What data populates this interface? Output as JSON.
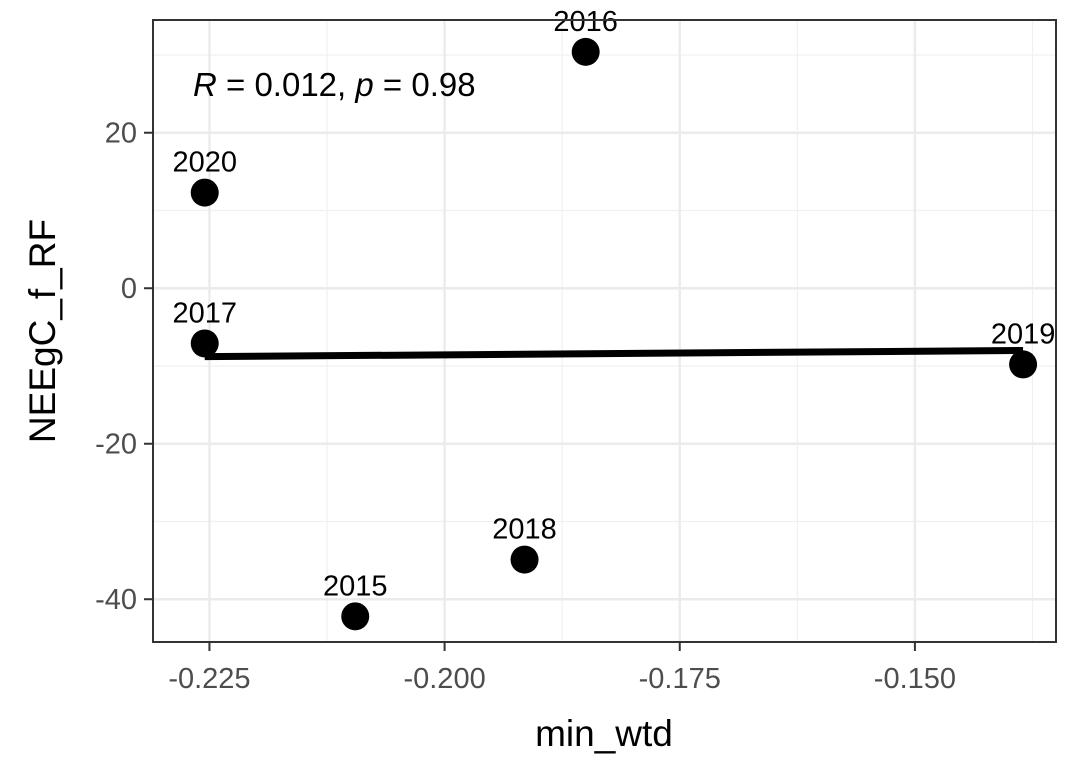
{
  "chart_data": {
    "type": "scatter",
    "xlabel": "min_wtd",
    "ylabel": "NEEgC_f_RF",
    "xlim": [
      -0.231,
      -0.135
    ],
    "ylim": [
      -45.5,
      34.5
    ],
    "x_ticks": [
      -0.225,
      -0.2,
      -0.175,
      -0.15
    ],
    "x_tick_labels": [
      "-0.225",
      "-0.200",
      "-0.175",
      "-0.150"
    ],
    "y_ticks": [
      -40,
      -20,
      0,
      20
    ],
    "y_tick_labels": [
      "-40",
      "-20",
      "0",
      "20"
    ],
    "grid": true,
    "points": [
      {
        "label": "2016",
        "x": -0.185,
        "y": 30.4
      },
      {
        "label": "2020",
        "x": -0.2255,
        "y": 12.3
      },
      {
        "label": "2017",
        "x": -0.2255,
        "y": -7.1
      },
      {
        "label": "2019",
        "x": -0.1385,
        "y": -9.8
      },
      {
        "label": "2018",
        "x": -0.1915,
        "y": -34.9
      },
      {
        "label": "2015",
        "x": -0.2095,
        "y": -42.2
      }
    ],
    "regression_line": {
      "x": [
        -0.2255,
        -0.1385
      ],
      "y": [
        -8.8,
        -8.0
      ]
    },
    "annotation": {
      "r_symbol": "R",
      "r_text": " = 0.012, ",
      "p_symbol": "p",
      "p_text": " = 0.98"
    }
  }
}
